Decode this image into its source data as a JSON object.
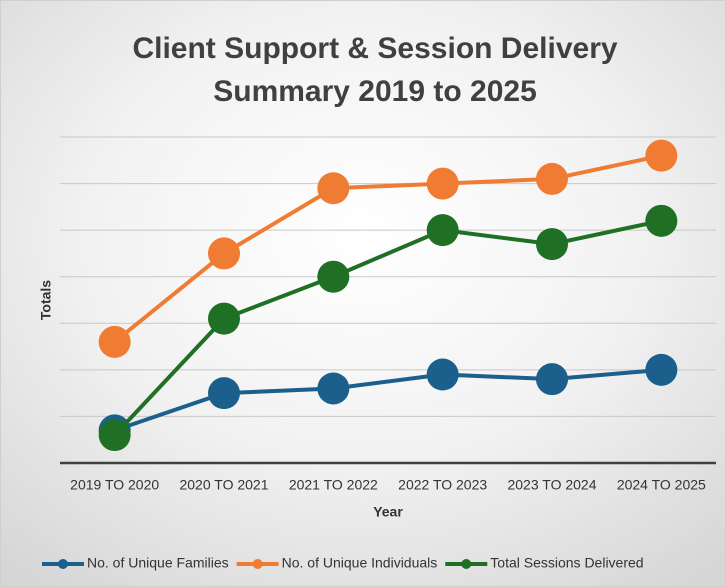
{
  "chart_data": {
    "type": "line",
    "title": [
      "Client Support & Session Delivery",
      "Summary 2019 to 2025"
    ],
    "xlabel": "Year",
    "ylabel": "Totals",
    "categories": [
      "2019 TO 2020",
      "2020 TO 2021",
      "2021 TO 2022",
      "2022 TO 2023",
      "2023 TO 2024",
      "2024 TO 2025"
    ],
    "series": [
      {
        "name": "No. of Unique Families",
        "color": "#1b5f8c",
        "values": [
          0.7,
          1.5,
          1.6,
          1.9,
          1.8,
          2.0
        ]
      },
      {
        "name": "No. of Unique Individuals",
        "color": "#f07b33",
        "values": [
          2.6,
          4.5,
          5.9,
          6.0,
          6.1,
          6.6
        ]
      },
      {
        "name": "Total Sessions Delivered",
        "color": "#1f6f24",
        "values": [
          0.6,
          3.1,
          4.0,
          5.0,
          4.7,
          5.2
        ]
      }
    ],
    "ylim": [
      0,
      7
    ],
    "yticks": [
      0,
      1,
      2,
      3,
      4,
      5,
      6,
      7
    ],
    "grid": true,
    "legend": "bottom"
  }
}
